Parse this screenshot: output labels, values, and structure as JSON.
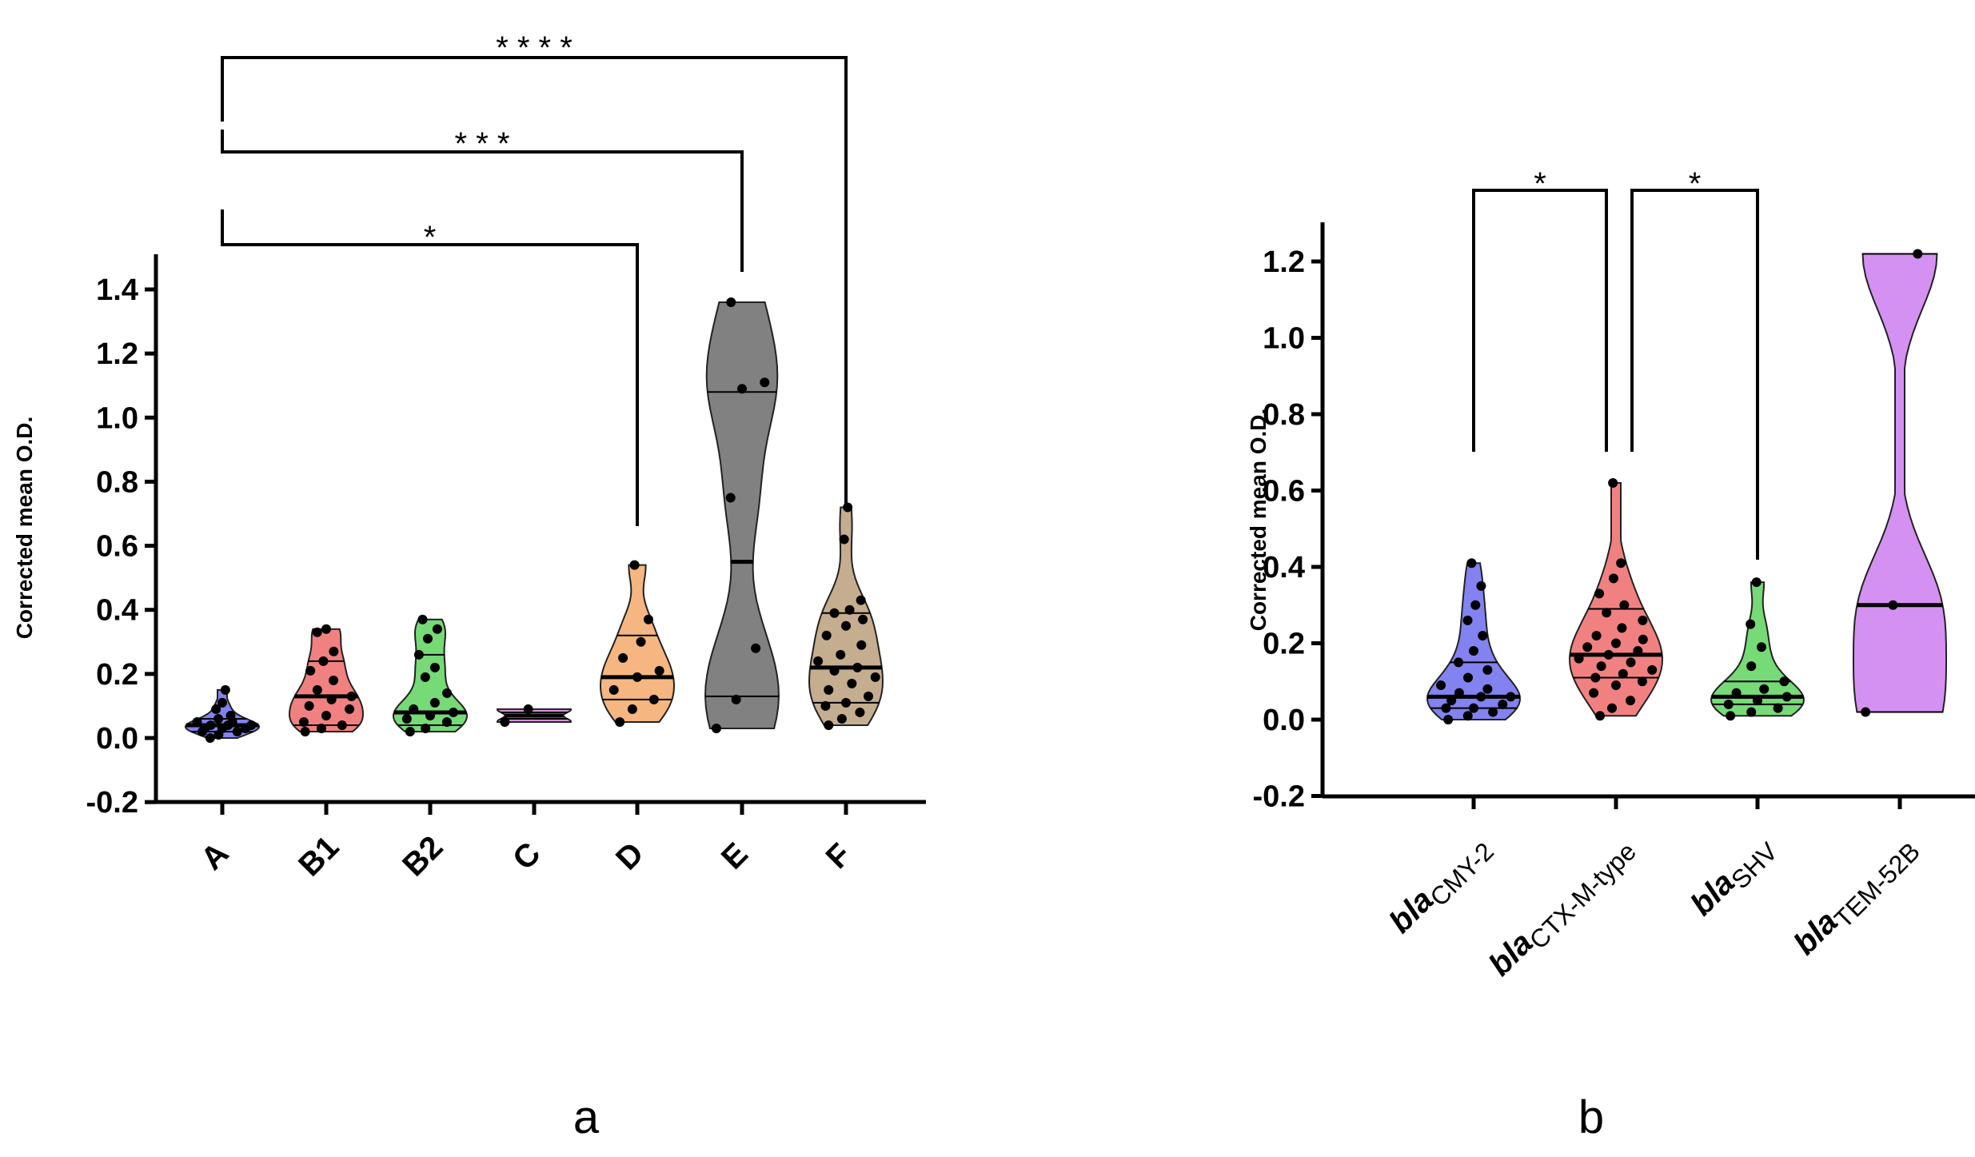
{
  "panel_labels": [
    "a",
    "b"
  ],
  "chart_data": [
    {
      "type": "violin",
      "panel": "a",
      "ylabel": "Corrected mean O.D.",
      "ylim": [
        -0.2,
        1.5
      ],
      "yticks": [
        -0.2,
        0.0,
        0.2,
        0.4,
        0.6,
        0.8,
        1.0,
        1.2,
        1.4
      ],
      "ytick_labels": [
        "-0.2",
        "0.0",
        "0.2",
        "0.4",
        "0.6",
        "0.8",
        "1.0",
        "1.2",
        "1.4"
      ],
      "groups": [
        {
          "label": "A",
          "color": "#7b7bf0",
          "min": 0.0,
          "max": 0.15,
          "median": 0.04,
          "q1": 0.02,
          "q3": 0.06,
          "points": [
            0.0,
            0.01,
            0.02,
            0.02,
            0.03,
            0.03,
            0.03,
            0.04,
            0.04,
            0.04,
            0.05,
            0.05,
            0.06,
            0.07,
            0.09,
            0.11,
            0.15
          ]
        },
        {
          "label": "B1",
          "color": "#f07a7a",
          "min": 0.02,
          "max": 0.34,
          "median": 0.13,
          "q1": 0.04,
          "q3": 0.24,
          "points": [
            0.02,
            0.03,
            0.04,
            0.05,
            0.07,
            0.09,
            0.1,
            0.12,
            0.13,
            0.15,
            0.18,
            0.21,
            0.24,
            0.27,
            0.33,
            0.34
          ]
        },
        {
          "label": "B2",
          "color": "#6fd86f",
          "min": 0.02,
          "max": 0.37,
          "median": 0.08,
          "q1": 0.04,
          "q3": 0.26,
          "points": [
            0.02,
            0.03,
            0.05,
            0.06,
            0.07,
            0.08,
            0.09,
            0.11,
            0.14,
            0.19,
            0.22,
            0.26,
            0.31,
            0.34,
            0.37
          ]
        },
        {
          "label": "C",
          "color": "#d38bd8",
          "min": 0.05,
          "max": 0.09,
          "median": 0.07,
          "q1": 0.06,
          "q3": 0.08,
          "points": [
            0.05,
            0.09
          ]
        },
        {
          "label": "D",
          "color": "#f5b27a",
          "min": 0.05,
          "max": 0.54,
          "median": 0.19,
          "q1": 0.12,
          "q3": 0.32,
          "points": [
            0.05,
            0.09,
            0.12,
            0.15,
            0.19,
            0.21,
            0.25,
            0.3,
            0.37,
            0.54
          ]
        },
        {
          "label": "E",
          "color": "#7a7a7a",
          "min": 0.03,
          "max": 1.36,
          "median": 0.55,
          "q1": 0.13,
          "q3": 1.08,
          "points": [
            0.03,
            0.12,
            0.28,
            0.75,
            1.09,
            1.11,
            1.36
          ]
        },
        {
          "label": "F",
          "color": "#c2a98a",
          "min": 0.04,
          "max": 0.72,
          "median": 0.22,
          "q1": 0.11,
          "q3": 0.39,
          "points": [
            0.04,
            0.06,
            0.08,
            0.1,
            0.11,
            0.13,
            0.15,
            0.17,
            0.19,
            0.21,
            0.22,
            0.24,
            0.26,
            0.29,
            0.32,
            0.35,
            0.37,
            0.39,
            0.4,
            0.43,
            0.62,
            0.72
          ]
        }
      ],
      "significance": [
        {
          "from": "A",
          "to": "D",
          "label": "*"
        },
        {
          "from": "A",
          "to": "E",
          "label": "* * *"
        },
        {
          "from": "A",
          "to": "F",
          "label": "* * * *"
        }
      ]
    },
    {
      "type": "violin",
      "panel": "b",
      "ylabel": "Corrected mean O.D.",
      "ylim": [
        -0.2,
        1.3
      ],
      "yticks": [
        -0.2,
        0.0,
        0.2,
        0.4,
        0.6,
        0.8,
        1.0,
        1.2
      ],
      "ytick_labels": [
        "-0.2",
        "0.0",
        "0.2",
        "0.4",
        "0.6",
        "0.8",
        "1.0",
        "1.2"
      ],
      "groups": [
        {
          "label": "bla",
          "sub": "CMY-2",
          "color": "#7b7bf0",
          "min": 0.0,
          "max": 0.41,
          "median": 0.06,
          "q1": 0.03,
          "q3": 0.15,
          "points": [
            0.0,
            0.01,
            0.02,
            0.03,
            0.03,
            0.04,
            0.05,
            0.06,
            0.06,
            0.07,
            0.08,
            0.09,
            0.11,
            0.13,
            0.15,
            0.18,
            0.22,
            0.26,
            0.3,
            0.35,
            0.41
          ]
        },
        {
          "label": "bla",
          "sub": "CTX-M-type",
          "color": "#f07a7a",
          "min": 0.01,
          "max": 0.62,
          "median": 0.17,
          "q1": 0.11,
          "q3": 0.29,
          "points": [
            0.01,
            0.03,
            0.05,
            0.07,
            0.09,
            0.1,
            0.11,
            0.12,
            0.13,
            0.14,
            0.15,
            0.16,
            0.17,
            0.18,
            0.19,
            0.2,
            0.21,
            0.22,
            0.24,
            0.26,
            0.28,
            0.3,
            0.33,
            0.37,
            0.41,
            0.62
          ]
        },
        {
          "label": "bla",
          "sub": "SHV",
          "color": "#6fd86f",
          "min": 0.01,
          "max": 0.36,
          "median": 0.06,
          "q1": 0.04,
          "q3": 0.1,
          "points": [
            0.01,
            0.02,
            0.03,
            0.04,
            0.05,
            0.06,
            0.07,
            0.08,
            0.1,
            0.14,
            0.19,
            0.25,
            0.36
          ]
        },
        {
          "label": "bla",
          "sub": "TEM-52B",
          "color": "#d38bf0",
          "min": 0.02,
          "max": 1.22,
          "median": 0.3,
          "q1": 0.02,
          "q3": 1.22,
          "points": [
            0.02,
            0.3,
            1.22
          ]
        }
      ],
      "significance": [
        {
          "from": "bla CMY-2",
          "to": "bla CTX-M-type",
          "label": "*"
        },
        {
          "from": "bla CTX-M-type",
          "to": "bla SHV",
          "label": "*"
        }
      ]
    }
  ]
}
